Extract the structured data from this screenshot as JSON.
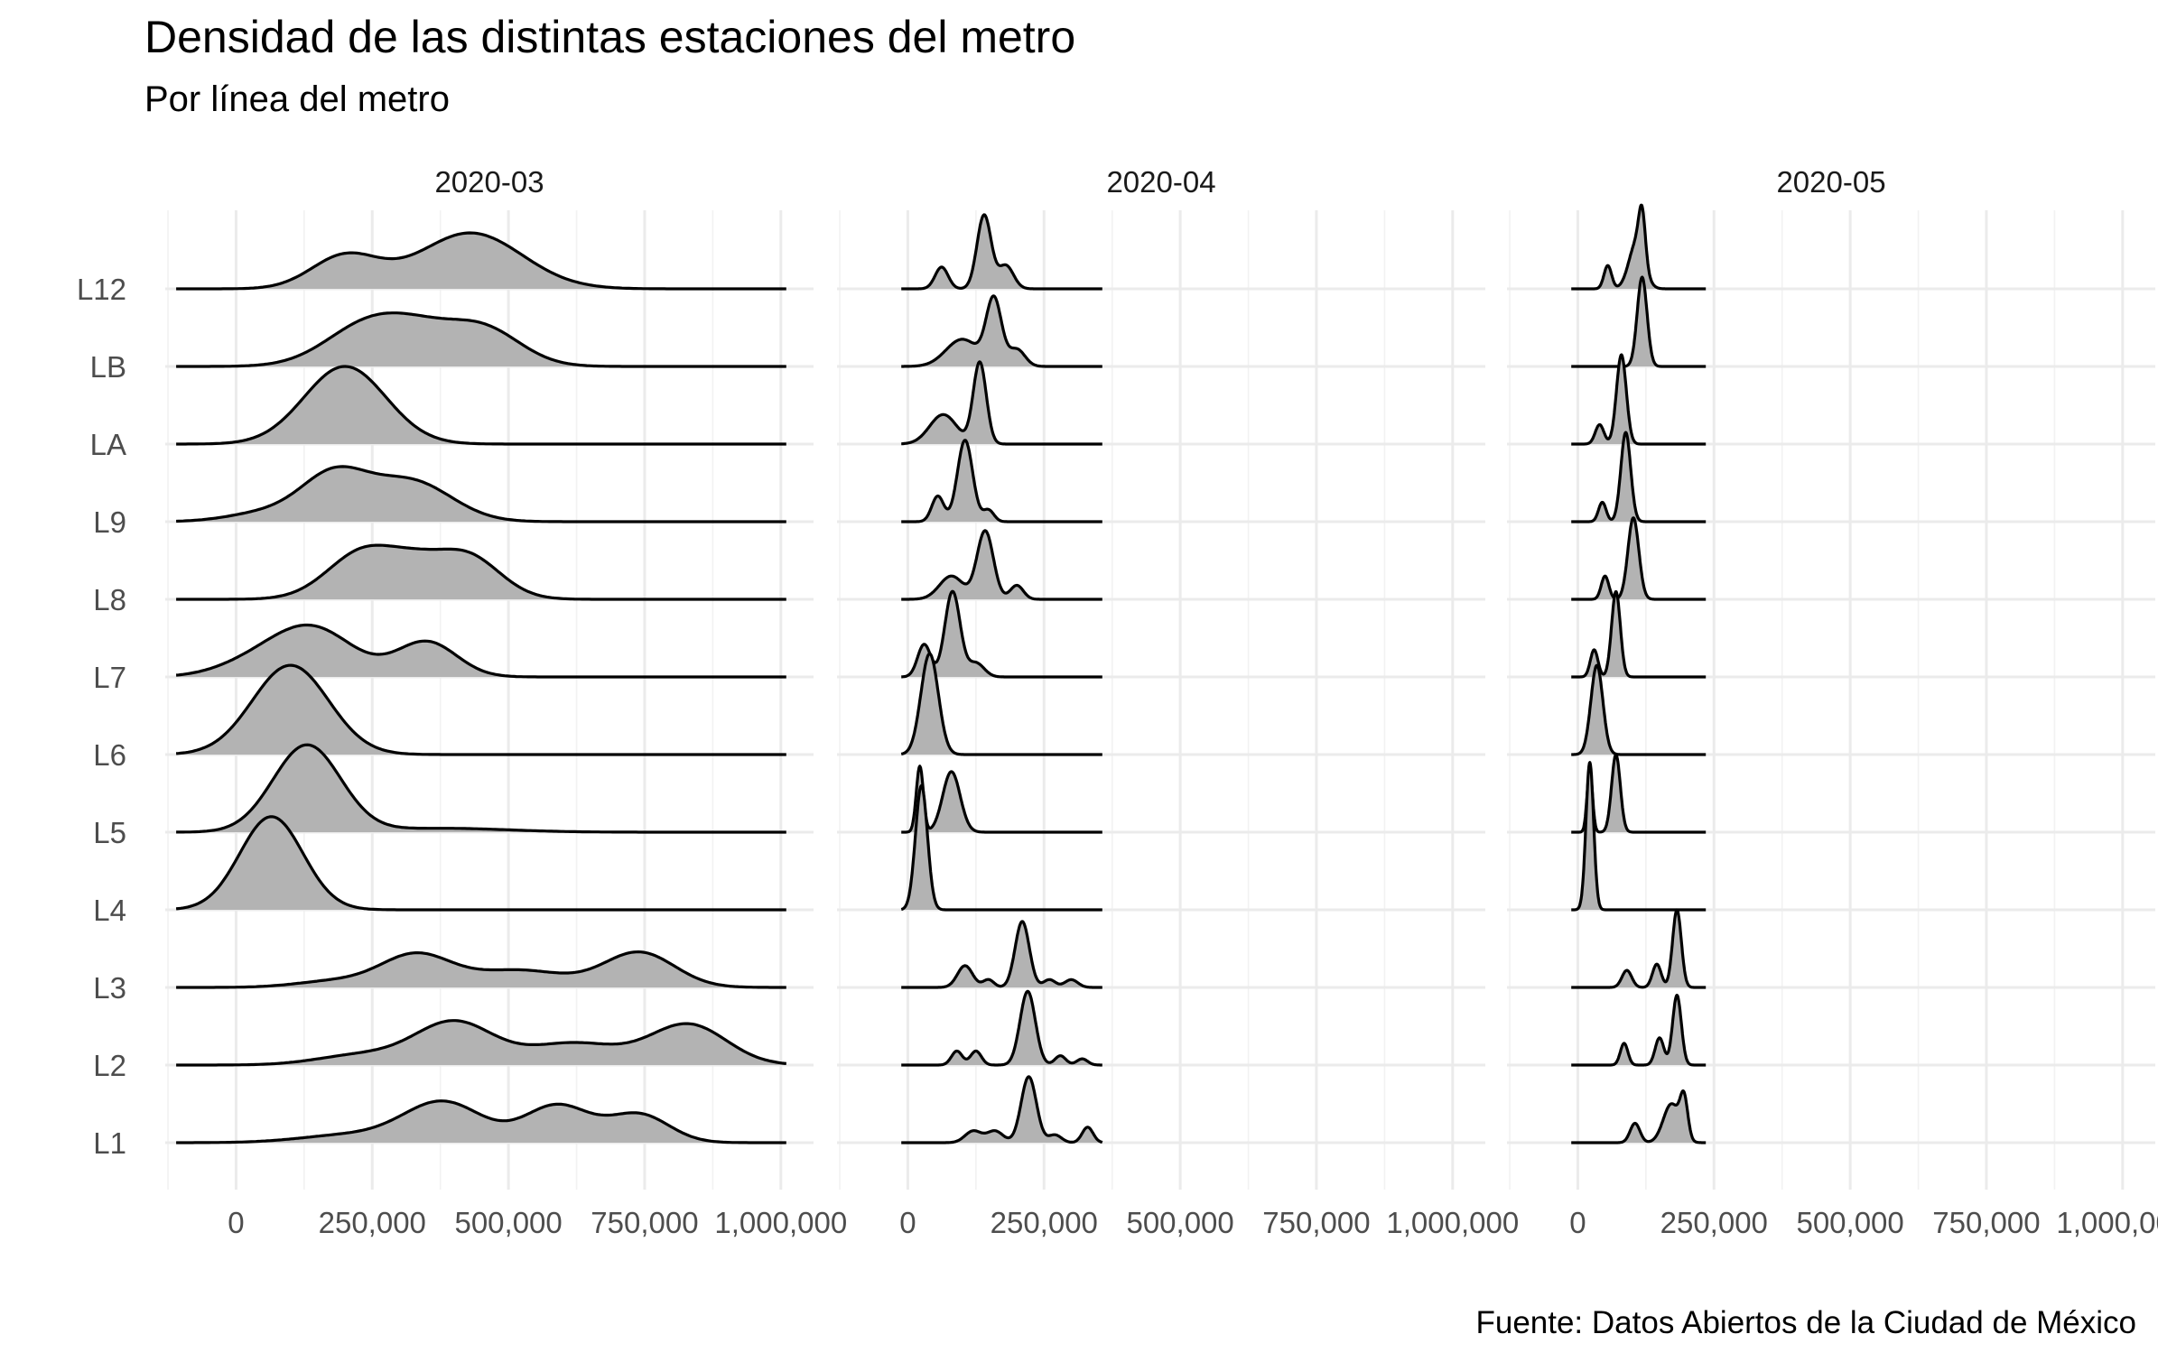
{
  "chart_data": {
    "type": "ridgeline-density",
    "title": "Densidad de las distintas estaciones del metro",
    "subtitle": "Por línea del metro",
    "caption": "Fuente: Datos Abiertos de la Ciudad de México",
    "xlabel": "",
    "ylabel": "",
    "xlim": [
      -130000,
      1060000
    ],
    "grid": true,
    "fill_color": "#b3b3b3",
    "line_color": "#000000",
    "categories": [
      "L1",
      "L2",
      "L3",
      "L4",
      "L5",
      "L6",
      "L7",
      "L8",
      "L9",
      "LA",
      "LB",
      "L12"
    ],
    "x_ticks": [
      0,
      250000,
      500000,
      750000,
      1000000
    ],
    "x_tick_labels": [
      "0",
      "250,000",
      "500,000",
      "750,000",
      "1,000,000"
    ],
    "panels": [
      {
        "label": "2020-03",
        "range": [
          -110000,
          1010000
        ],
        "series": {
          "L12": [
            {
              "m": 200000,
              "s": 62000,
              "w": 0.42
            },
            {
              "m": 430000,
              "s": 95000,
              "w": 0.72
            }
          ],
          "LB": [
            {
              "m": 250000,
              "s": 80000,
              "w": 0.58
            },
            {
              "m": 450000,
              "s": 70000,
              "w": 0.5
            },
            {
              "m": 340000,
              "s": 60000,
              "w": 0.2
            }
          ],
          "LA": [
            {
              "m": 200000,
              "s": 75000,
              "w": 1.0
            }
          ],
          "L9": [
            {
              "m": 180000,
              "s": 60000,
              "w": 0.58
            },
            {
              "m": 320000,
              "s": 75000,
              "w": 0.52
            },
            {
              "m": 60000,
              "s": 70000,
              "w": 0.12
            }
          ],
          "L8": [
            {
              "m": 240000,
              "s": 68000,
              "w": 0.65
            },
            {
              "m": 420000,
              "s": 62000,
              "w": 0.58
            },
            {
              "m": 330000,
              "s": 45000,
              "w": 0.18
            }
          ],
          "L7": [
            {
              "m": 140000,
              "s": 75000,
              "w": 0.62
            },
            {
              "m": 350000,
              "s": 55000,
              "w": 0.45
            },
            {
              "m": 30000,
              "s": 70000,
              "w": 0.15
            }
          ],
          "L6": [
            {
              "m": 100000,
              "s": 70000,
              "w": 1.15
            }
          ],
          "L5": [
            {
              "m": 130000,
              "s": 62000,
              "w": 1.12
            },
            {
              "m": 380000,
              "s": 120000,
              "w": 0.05
            }
          ],
          "L4": [
            {
              "m": 65000,
              "s": 58000,
              "w": 1.2
            }
          ],
          "L3": [
            {
              "m": 330000,
              "s": 65000,
              "w": 0.42
            },
            {
              "m": 520000,
              "s": 85000,
              "w": 0.22
            },
            {
              "m": 740000,
              "s": 65000,
              "w": 0.45
            },
            {
              "m": 180000,
              "s": 70000,
              "w": 0.08
            }
          ],
          "L2": [
            {
              "m": 400000,
              "s": 72000,
              "w": 0.55
            },
            {
              "m": 620000,
              "s": 85000,
              "w": 0.28
            },
            {
              "m": 830000,
              "s": 70000,
              "w": 0.52
            },
            {
              "m": 230000,
              "s": 80000,
              "w": 0.13
            }
          ],
          "L1": [
            {
              "m": 380000,
              "s": 72000,
              "w": 0.52
            },
            {
              "m": 590000,
              "s": 60000,
              "w": 0.48
            },
            {
              "m": 740000,
              "s": 55000,
              "w": 0.36
            },
            {
              "m": 210000,
              "s": 90000,
              "w": 0.1
            }
          ]
        }
      },
      {
        "label": "2020-04",
        "range": [
          -12000,
          357000
        ],
        "series": {
          "L12": [
            {
              "m": 62000,
              "s": 12000,
              "w": 0.28
            },
            {
              "m": 140000,
              "s": 13000,
              "w": 0.95
            },
            {
              "m": 180000,
              "s": 14000,
              "w": 0.3
            }
          ],
          "LB": [
            {
              "m": 100000,
              "s": 30000,
              "w": 0.35
            },
            {
              "m": 158000,
              "s": 14000,
              "w": 0.85
            },
            {
              "m": 200000,
              "s": 15000,
              "w": 0.22
            }
          ],
          "LA": [
            {
              "m": 65000,
              "s": 25000,
              "w": 0.38
            },
            {
              "m": 132000,
              "s": 12000,
              "w": 1.05
            }
          ],
          "L9": [
            {
              "m": 55000,
              "s": 11000,
              "w": 0.33
            },
            {
              "m": 105000,
              "s": 14000,
              "w": 1.05
            },
            {
              "m": 148000,
              "s": 10000,
              "w": 0.15
            }
          ],
          "L8": [
            {
              "m": 80000,
              "s": 22000,
              "w": 0.3
            },
            {
              "m": 142000,
              "s": 15000,
              "w": 0.88
            },
            {
              "m": 200000,
              "s": 12000,
              "w": 0.18
            }
          ],
          "L7": [
            {
              "m": 30000,
              "s": 12000,
              "w": 0.42
            },
            {
              "m": 82000,
              "s": 14000,
              "w": 1.1
            },
            {
              "m": 125000,
              "s": 15000,
              "w": 0.18
            }
          ],
          "L6": [
            {
              "m": 40000,
              "s": 16000,
              "w": 1.3
            }
          ],
          "L5": [
            {
              "m": 22000,
              "s": 6500,
              "w": 0.85
            },
            {
              "m": 80000,
              "s": 16000,
              "w": 0.78
            }
          ],
          "L4": [
            {
              "m": 25000,
              "s": 11000,
              "w": 1.6
            }
          ],
          "L3": [
            {
              "m": 105000,
              "s": 14000,
              "w": 0.28
            },
            {
              "m": 210000,
              "s": 13000,
              "w": 0.85
            },
            {
              "m": 260000,
              "s": 11000,
              "w": 0.1
            },
            {
              "m": 300000,
              "s": 12000,
              "w": 0.1
            },
            {
              "m": 148000,
              "s": 10000,
              "w": 0.1
            }
          ],
          "L2": [
            {
              "m": 90000,
              "s": 10000,
              "w": 0.18
            },
            {
              "m": 125000,
              "s": 10000,
              "w": 0.18
            },
            {
              "m": 220000,
              "s": 14000,
              "w": 0.95
            },
            {
              "m": 280000,
              "s": 10000,
              "w": 0.12
            },
            {
              "m": 320000,
              "s": 10000,
              "w": 0.08
            }
          ],
          "L1": [
            {
              "m": 120000,
              "s": 15000,
              "w": 0.15
            },
            {
              "m": 160000,
              "s": 15000,
              "w": 0.15
            },
            {
              "m": 222000,
              "s": 14000,
              "w": 0.85
            },
            {
              "m": 270000,
              "s": 12000,
              "w": 0.1
            },
            {
              "m": 330000,
              "s": 10000,
              "w": 0.2
            }
          ]
        }
      },
      {
        "label": "2020-05",
        "range": [
          -12000,
          235000
        ],
        "series": {
          "L12": [
            {
              "m": 55000,
              "s": 7000,
              "w": 0.3
            },
            {
              "m": 108000,
              "s": 14000,
              "w": 0.6
            },
            {
              "m": 118000,
              "s": 6000,
              "w": 0.6
            }
          ],
          "LB": [
            {
              "m": 118000,
              "s": 9000,
              "w": 1.15
            }
          ],
          "LA": [
            {
              "m": 40000,
              "s": 8000,
              "w": 0.25
            },
            {
              "m": 80000,
              "s": 9000,
              "w": 1.15
            }
          ],
          "L9": [
            {
              "m": 45000,
              "s": 7000,
              "w": 0.25
            },
            {
              "m": 88000,
              "s": 9000,
              "w": 1.15
            }
          ],
          "L8": [
            {
              "m": 50000,
              "s": 7000,
              "w": 0.3
            },
            {
              "m": 102000,
              "s": 10000,
              "w": 1.05
            }
          ],
          "L7": [
            {
              "m": 30000,
              "s": 7000,
              "w": 0.35
            },
            {
              "m": 70000,
              "s": 8000,
              "w": 1.1
            }
          ],
          "L6": [
            {
              "m": 35000,
              "s": 11000,
              "w": 1.15
            }
          ],
          "L5": [
            {
              "m": 22000,
              "s": 5000,
              "w": 0.8
            },
            {
              "m": 70000,
              "s": 8000,
              "w": 1.0
            }
          ],
          "L4": [
            {
              "m": 22000,
              "s": 7000,
              "w": 1.9
            }
          ],
          "L3": [
            {
              "m": 90000,
              "s": 9000,
              "w": 0.22
            },
            {
              "m": 145000,
              "s": 8000,
              "w": 0.3
            },
            {
              "m": 182000,
              "s": 8000,
              "w": 1.0
            }
          ],
          "L2": [
            {
              "m": 85000,
              "s": 7000,
              "w": 0.28
            },
            {
              "m": 150000,
              "s": 8000,
              "w": 0.35
            },
            {
              "m": 182000,
              "s": 8000,
              "w": 0.9
            }
          ],
          "L1": [
            {
              "m": 105000,
              "s": 9000,
              "w": 0.25
            },
            {
              "m": 172000,
              "s": 15000,
              "w": 0.5
            },
            {
              "m": 195000,
              "s": 7000,
              "w": 0.5
            }
          ]
        }
      }
    ]
  }
}
